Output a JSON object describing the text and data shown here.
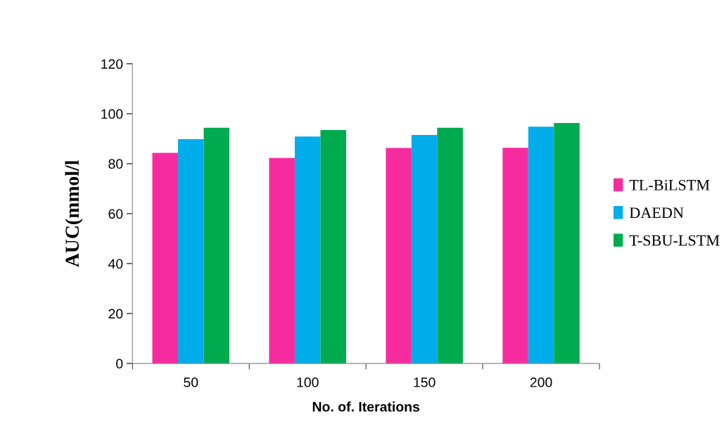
{
  "chart_data": {
    "type": "bar",
    "xlabel": "No. of. Iterations",
    "ylabel": "AUC(mmol/l",
    "categories": [
      "50",
      "100",
      "150",
      "200"
    ],
    "series": [
      {
        "name": "TL-BiLSTM",
        "color": "#f72ba0",
        "values": [
          84.3,
          82.3,
          86.3,
          86.4
        ]
      },
      {
        "name": "DAEDN",
        "color": "#00adea",
        "values": [
          89.8,
          90.9,
          91.5,
          94.8
        ]
      },
      {
        "name": "T-SBU-LSTM",
        "color": "#00aa4f",
        "values": [
          94.4,
          93.5,
          94.4,
          96.3
        ]
      }
    ],
    "ylim": [
      0,
      120
    ],
    "yticks": [
      0,
      20,
      40,
      60,
      80,
      100,
      120
    ],
    "grid": false,
    "legend": "right"
  }
}
